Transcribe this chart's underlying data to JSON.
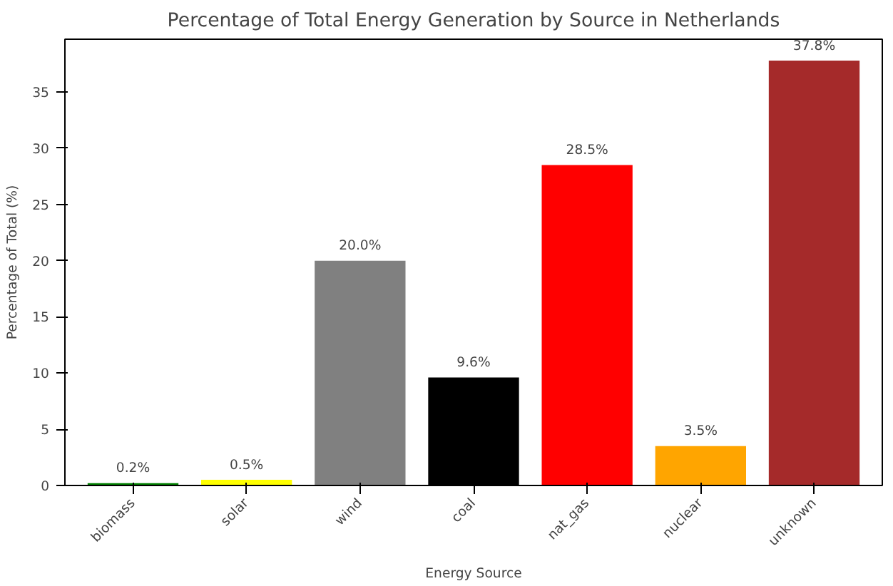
{
  "chart_data": {
    "type": "bar",
    "title": "Percentage of Total Energy Generation by Source in Netherlands",
    "xlabel": "Energy Source",
    "ylabel": "Percentage of Total (%)",
    "categories": [
      "biomass",
      "solar",
      "wind",
      "coal",
      "nat_gas",
      "nuclear",
      "unknown"
    ],
    "values": [
      0.2,
      0.5,
      20.0,
      9.6,
      28.5,
      3.5,
      37.8
    ],
    "colors": [
      "#008000",
      "#ffff00",
      "#808080",
      "#000000",
      "#ff0000",
      "#ffa500",
      "#a52a2a"
    ],
    "value_labels": [
      "0.2%",
      "0.5%",
      "20.0%",
      "9.6%",
      "28.5%",
      "3.5%",
      "37.8%"
    ],
    "ylim": [
      0,
      39.7
    ],
    "yticks": [
      0,
      5,
      10,
      15,
      20,
      25,
      30,
      35
    ],
    "grid": false
  }
}
